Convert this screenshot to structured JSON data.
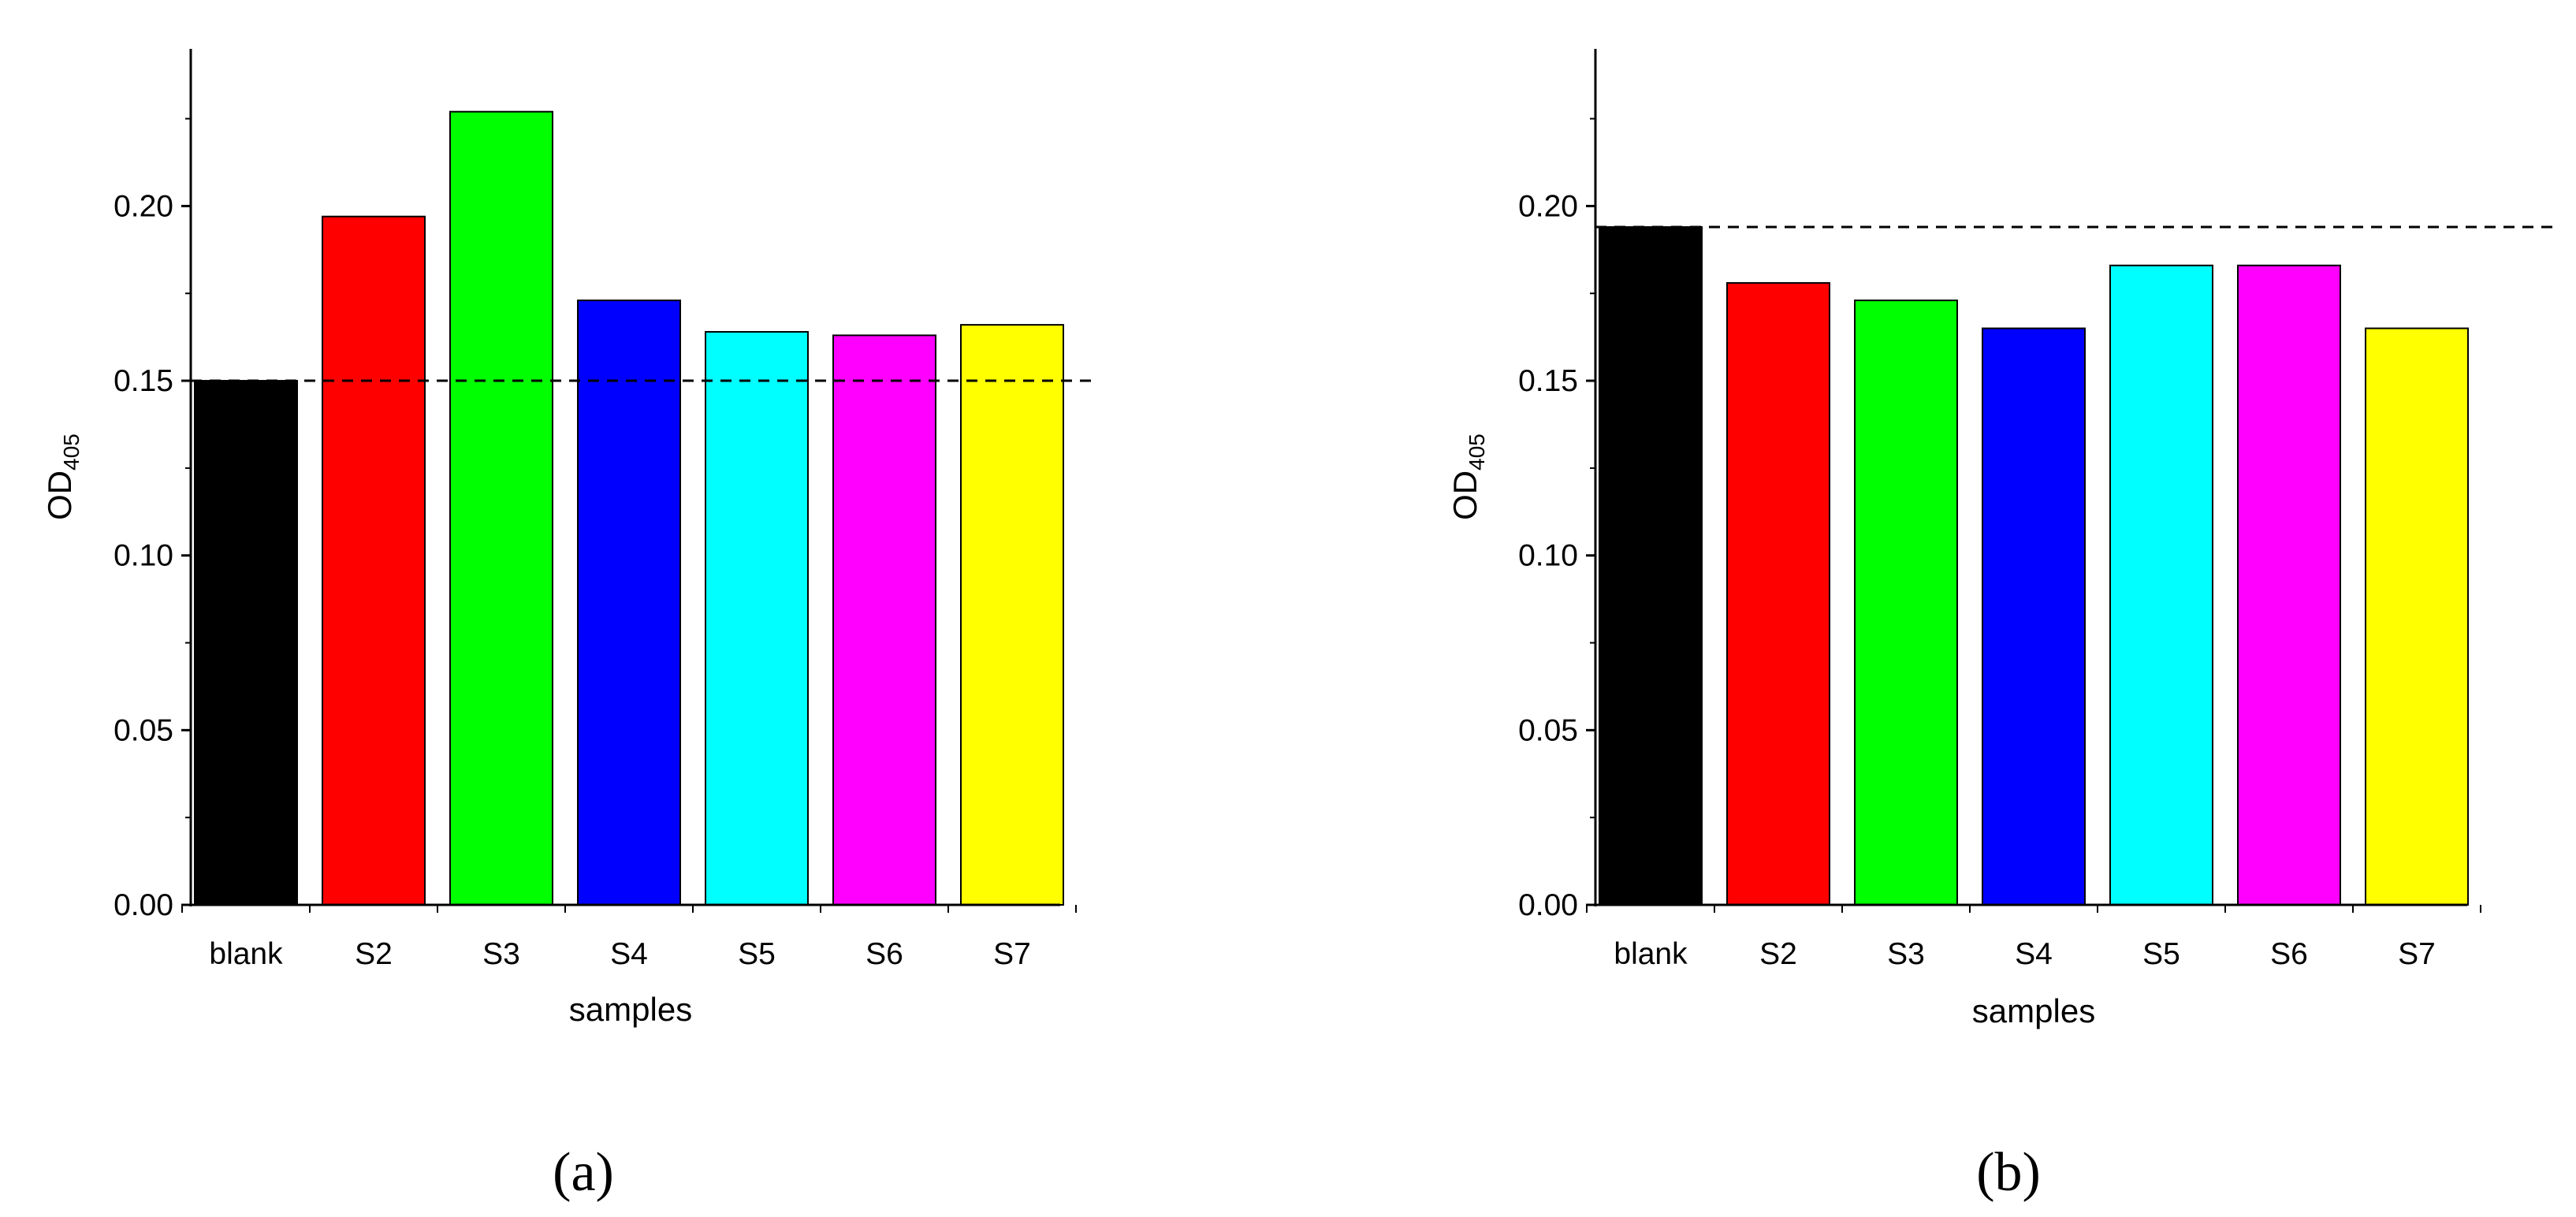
{
  "chart_data": [
    {
      "type": "bar",
      "panel_label": "(a)",
      "categories": [
        "blank",
        "S2",
        "S3",
        "S4",
        "S5",
        "S6",
        "S7"
      ],
      "values": [
        0.15,
        0.197,
        0.227,
        0.173,
        0.164,
        0.163,
        0.166
      ],
      "colors": [
        "#000000",
        "#ff0000",
        "#00ff00",
        "#0000ff",
        "#00ffff",
        "#ff00ff",
        "#ffff00"
      ],
      "xlabel": "samples",
      "ylabel": {
        "main": "OD",
        "subscript": "405"
      },
      "ylim": [
        0,
        0.245
      ],
      "yticks": [
        "0.00",
        "0.05",
        "0.10",
        "0.15",
        "0.20"
      ],
      "reference_line": {
        "value": 0.15,
        "style": "dashed"
      },
      "grid": false
    },
    {
      "type": "bar",
      "panel_label": "(b)",
      "categories": [
        "blank",
        "S2",
        "S3",
        "S4",
        "S5",
        "S6",
        "S7"
      ],
      "values": [
        0.194,
        0.178,
        0.173,
        0.165,
        0.183,
        0.183,
        0.165
      ],
      "colors": [
        "#000000",
        "#ff0000",
        "#00ff00",
        "#0000ff",
        "#00ffff",
        "#ff00ff",
        "#ffff00"
      ],
      "xlabel": "samples",
      "ylabel": {
        "main": "OD",
        "subscript": "405"
      },
      "ylim": [
        0,
        0.245
      ],
      "yticks": [
        "0.00",
        "0.05",
        "0.10",
        "0.15",
        "0.20"
      ],
      "reference_line": {
        "value": 0.194,
        "style": "dashed"
      },
      "grid": false
    }
  ]
}
